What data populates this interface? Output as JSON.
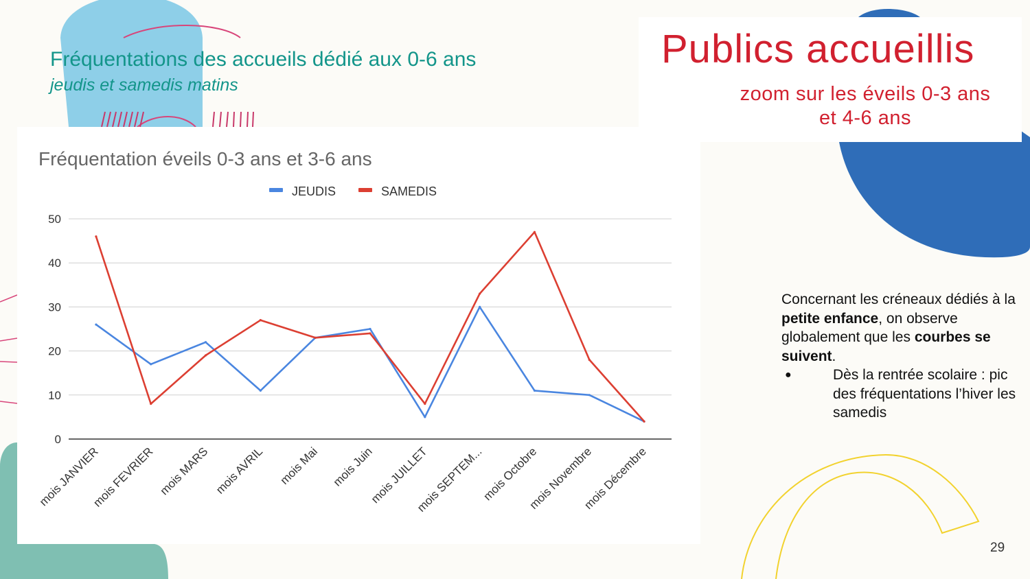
{
  "header": {
    "title": "Fréquentations des accueils dédié aux 0-6 ans",
    "subtitle": "jeudis et samedis matins"
  },
  "section": {
    "title": "Publics accueillis",
    "subtitle_line1": "zoom sur les éveils 0-3 ans",
    "subtitle_line2": "et 4-6 ans"
  },
  "side_text": {
    "p_part1": "Concernant les créneaux dédiés à la ",
    "p_bold1": "petite enfance",
    "p_part2": ", on observe globalement que les ",
    "p_bold2": "courbes se suivent",
    "p_part3": ".",
    "bullet": "Dès la rentrée scolaire : pic des fréquentations l’hiver les samedis"
  },
  "page_number": "29",
  "colors": {
    "teal_text": "#13958a",
    "red_text": "#d1202f",
    "jeudis": "#4a86e0",
    "samedis": "#dc3f32"
  },
  "chart_data": {
    "type": "line",
    "title": "Fréquentation éveils 0-3 ans et 3-6 ans",
    "categories": [
      "mois JANVIER",
      "mois FEVRIER",
      "mois MARS",
      "mois AVRIL",
      "mois Mai",
      "mois Juin",
      "mois JUILLET",
      "mois SEPTEM...",
      "mois Octobre",
      "mois Novembre",
      "mois Décembre"
    ],
    "series": [
      {
        "name": "JEUDIS",
        "color": "#4a86e0",
        "values": [
          26,
          17,
          22,
          11,
          23,
          25,
          5,
          30,
          11,
          10,
          4
        ]
      },
      {
        "name": "SAMEDIS",
        "color": "#dc3f32",
        "values": [
          46,
          8,
          19,
          27,
          23,
          24,
          8,
          33,
          47,
          18,
          4
        ]
      }
    ],
    "ylim": [
      0,
      50
    ],
    "yticks": [
      0,
      10,
      20,
      30,
      40,
      50
    ],
    "grid": true,
    "legend": "top-center"
  }
}
